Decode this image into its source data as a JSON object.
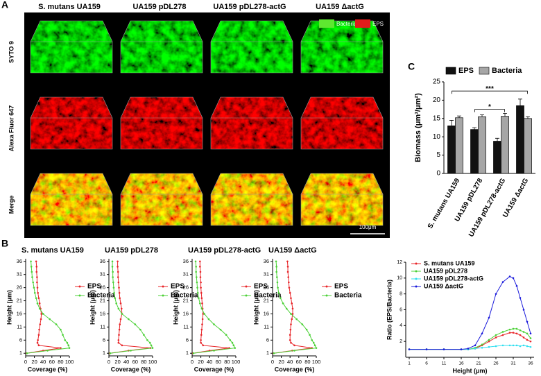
{
  "panel_labels": [
    "A",
    "B",
    "C"
  ],
  "panel_a": {
    "columns": [
      "S. mutans UA159",
      "UA159 pDL278",
      "UA159 pDL278-actG",
      "UA159 ΔactG"
    ],
    "rows": [
      "SYTO 9",
      "Alexa Fluor 647",
      "Merge"
    ],
    "legend": [
      {
        "name": "Bacteria",
        "color": "#5ee830"
      },
      {
        "name": "EPS",
        "color": "#e01b1b"
      }
    ],
    "scale_bar": "100μm"
  },
  "chart_data": [
    {
      "type": "bar",
      "ylabel": "Biomass (μm³/μm²)",
      "categories": [
        "S. mutans UA159",
        "UA159 pDL278",
        "UA159 pDL278-actG",
        "UA159 ΔactG"
      ],
      "series": [
        {
          "name": "EPS",
          "color": "#111111",
          "values": [
            13,
            12,
            8.8,
            18.5
          ],
          "errors": [
            1.5,
            0.5,
            0.8,
            1.8
          ]
        },
        {
          "name": "Bacteria",
          "color": "#a6a6a6",
          "values": [
            15.2,
            15.5,
            15.6,
            15
          ],
          "errors": [
            0.5,
            0.5,
            0.8,
            0.5
          ]
        }
      ],
      "ylim": [
        0,
        25
      ],
      "yticks": [
        0,
        5,
        10,
        15,
        20,
        25
      ],
      "annotations": [
        "***",
        "*"
      ]
    },
    {
      "type": "line",
      "orientation": "horizontal",
      "title": "S. mutans UA159",
      "xlabel": "Coverage (%)",
      "ylabel": "Height (μm)",
      "y": [
        1,
        2,
        3,
        4,
        5,
        6,
        8,
        10,
        12,
        14,
        16,
        18,
        20,
        22,
        24,
        26,
        28,
        30,
        32,
        34,
        36
      ],
      "series": [
        {
          "name": "EPS",
          "color": "#e8262a",
          "values": [
            2,
            40,
            80,
            30,
            27,
            28,
            30,
            31,
            33,
            35,
            36,
            34,
            32,
            30,
            28,
            27,
            26,
            26,
            25,
            25,
            24
          ]
        },
        {
          "name": "Bacteria",
          "color": "#4cd137",
          "values": [
            3,
            50,
            100,
            98,
            95,
            90,
            85,
            80,
            70,
            55,
            40,
            32,
            27,
            24,
            21,
            19,
            17,
            15,
            14,
            13,
            12
          ]
        }
      ],
      "xlim": [
        0,
        100
      ],
      "xticks": [
        0,
        20,
        40,
        60,
        80,
        100
      ],
      "ylim": [
        0,
        37
      ],
      "yticks": [
        1,
        6,
        11,
        16,
        21,
        26,
        31,
        36
      ]
    },
    {
      "type": "line",
      "orientation": "horizontal",
      "title": "UA159 pDL278",
      "xlabel": "Coverage (%)",
      "ylabel": "Height (μm)",
      "y": [
        1,
        2,
        3,
        4,
        5,
        6,
        8,
        10,
        12,
        14,
        16,
        18,
        20,
        22,
        24,
        26,
        28,
        30,
        32,
        34,
        36
      ],
      "series": [
        {
          "name": "EPS",
          "color": "#e8262a",
          "values": [
            2,
            45,
            95,
            30,
            22,
            22,
            23,
            24,
            25,
            27,
            30,
            29,
            27,
            25,
            24,
            23,
            22,
            21,
            21,
            20,
            20
          ]
        },
        {
          "name": "Bacteria",
          "color": "#4cd137",
          "values": [
            3,
            50,
            100,
            97,
            94,
            88,
            80,
            72,
            60,
            45,
            30,
            22,
            17,
            14,
            12,
            11,
            10,
            9,
            9,
            8,
            8
          ]
        }
      ],
      "xlim": [
        0,
        100
      ],
      "xticks": [
        0,
        20,
        40,
        60,
        80,
        100
      ],
      "ylim": [
        0,
        37
      ],
      "yticks": [
        1,
        6,
        11,
        16,
        21,
        26,
        31,
        36
      ]
    },
    {
      "type": "line",
      "orientation": "horizontal",
      "title": "UA159 pDL278-actG",
      "xlabel": "Coverage (%)",
      "ylabel": "Height (μm)",
      "y": [
        1,
        2,
        3,
        4,
        5,
        6,
        8,
        10,
        12,
        14,
        16,
        18,
        20,
        22,
        24,
        26,
        28,
        30,
        32,
        34,
        36
      ],
      "series": [
        {
          "name": "EPS",
          "color": "#e8262a",
          "values": [
            2,
            40,
            85,
            25,
            20,
            20,
            21,
            22,
            23,
            24,
            25,
            24,
            23,
            22,
            21,
            20,
            20,
            19,
            19,
            18,
            18
          ]
        },
        {
          "name": "Bacteria",
          "color": "#4cd137",
          "values": [
            3,
            50,
            98,
            95,
            92,
            87,
            78,
            65,
            50,
            38,
            28,
            22,
            18,
            15,
            13,
            12,
            11,
            10,
            9,
            9,
            8
          ]
        }
      ],
      "xlim": [
        0,
        100
      ],
      "xticks": [
        0,
        20,
        40,
        60,
        80,
        100
      ],
      "ylim": [
        0,
        37
      ],
      "yticks": [
        1,
        6,
        11,
        16,
        21,
        26,
        31,
        36
      ]
    },
    {
      "type": "line",
      "orientation": "horizontal",
      "title": "UA159 ΔactG",
      "xlabel": "Coverage (%)",
      "ylabel": "Height (μm)",
      "y": [
        1,
        2,
        3,
        4,
        5,
        6,
        8,
        10,
        12,
        14,
        16,
        18,
        20,
        22,
        24,
        26,
        28,
        30,
        32,
        34,
        36
      ],
      "series": [
        {
          "name": "EPS",
          "color": "#e8262a",
          "values": [
            2,
            45,
            90,
            50,
            42,
            40,
            40,
            41,
            42,
            44,
            46,
            46,
            44,
            42,
            40,
            38,
            37,
            36,
            35,
            35,
            34
          ]
        },
        {
          "name": "Bacteria",
          "color": "#4cd137",
          "values": [
            3,
            50,
            100,
            97,
            94,
            90,
            85,
            78,
            68,
            55,
            42,
            32,
            24,
            18,
            14,
            12,
            11,
            10,
            9,
            9,
            8
          ]
        }
      ],
      "xlim": [
        0,
        100
      ],
      "xticks": [
        0,
        20,
        40,
        60,
        80,
        100
      ],
      "ylim": [
        0,
        37
      ],
      "yticks": [
        1,
        6,
        11,
        16,
        21,
        26,
        31,
        36
      ]
    },
    {
      "type": "line",
      "xlabel": "Height (μm)",
      "ylabel": "Ratio (EPS/Bacteria)",
      "x": [
        1,
        6,
        11,
        16,
        18,
        20,
        22,
        24,
        26,
        28,
        30,
        31,
        32,
        33,
        34,
        35,
        36
      ],
      "series": [
        {
          "name": "S. mutans UA159",
          "color": "#e8262a",
          "values": [
            1,
            1,
            1,
            1,
            1,
            1.1,
            1.5,
            2,
            2.5,
            2.8,
            3.1,
            3.1,
            3,
            2.8,
            2.5,
            2.2,
            2
          ]
        },
        {
          "name": "UA159 pDL278",
          "color": "#4cd137",
          "values": [
            1,
            1,
            1,
            1,
            1,
            1.2,
            1.6,
            2.2,
            2.8,
            3.2,
            3.5,
            3.6,
            3.6,
            3.4,
            3.2,
            3,
            2.4
          ]
        },
        {
          "name": "UA159 pDL278-actG",
          "color": "#30dff0",
          "values": [
            1,
            1,
            1,
            1,
            1,
            1.1,
            1.2,
            1.3,
            1.4,
            1.5,
            1.5,
            1.5,
            1.5,
            1.4,
            1.5,
            1.4,
            1.3
          ]
        },
        {
          "name": "UA159 ΔactG",
          "color": "#1a1adb",
          "values": [
            1,
            1,
            1,
            1,
            1.1,
            1.5,
            3,
            5,
            8,
            9.5,
            10.2,
            10,
            9,
            7.5,
            6,
            4.5,
            3
          ]
        }
      ],
      "xlim": [
        0,
        37
      ],
      "xticks": [
        1,
        6,
        11,
        16,
        21,
        26,
        31,
        36
      ],
      "ylim": [
        0,
        12
      ],
      "yticks": [
        2,
        4,
        6,
        8,
        10,
        12
      ]
    }
  ]
}
